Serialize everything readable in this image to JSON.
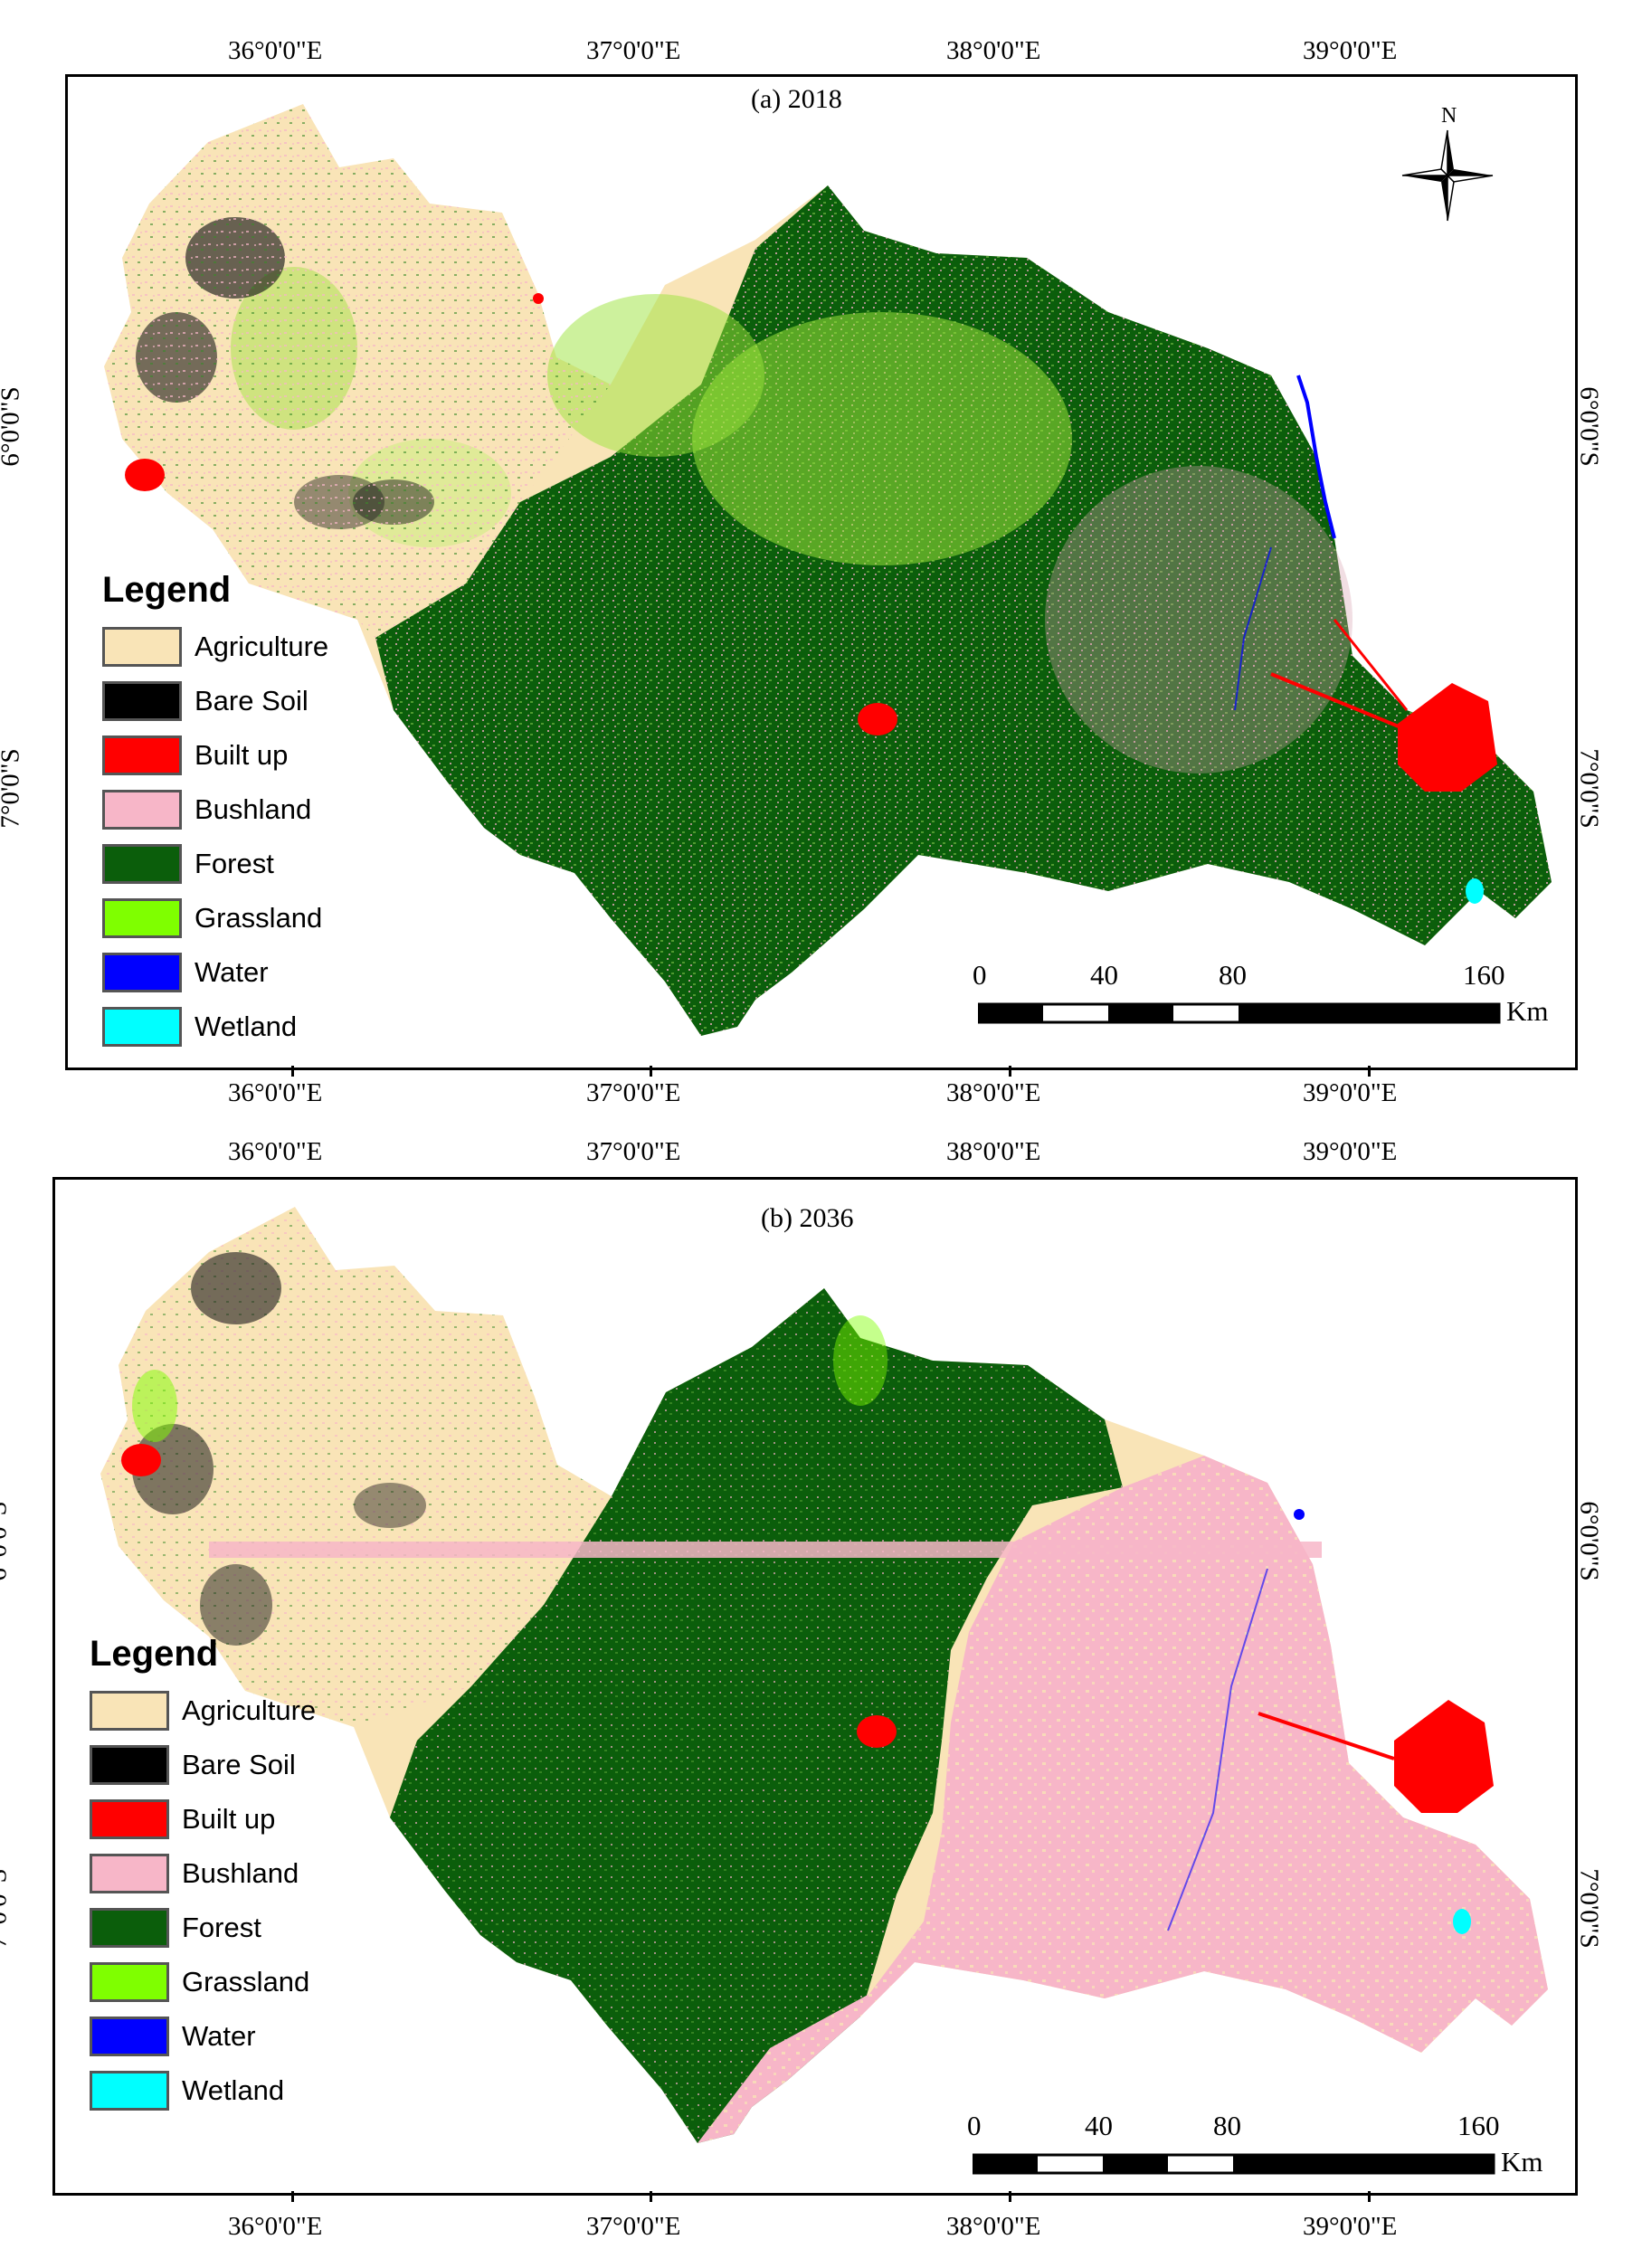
{
  "panels": [
    {
      "title": "(a) 2018",
      "lon_labels": [
        "36°0'0\"E",
        "37°0'0\"E",
        "38°0'0\"E",
        "39°0'0\"E"
      ],
      "lat_labels": [
        "6°0'0\"S",
        "7°0'0\"S"
      ],
      "legend": {
        "title": "Legend",
        "items": [
          {
            "label": "Agriculture",
            "color": "#F9E4B7"
          },
          {
            "label": "Bare Soil",
            "color": "#000000"
          },
          {
            "label": "Built up",
            "color": "#FF0000"
          },
          {
            "label": "Bushland",
            "color": "#F7B6C8"
          },
          {
            "label": "Forest",
            "color": "#0B5E0B"
          },
          {
            "label": "Grassland",
            "color": "#7FFF00"
          },
          {
            "label": "Water",
            "color": "#0000FF"
          },
          {
            "label": "Wetland",
            "color": "#00FFFF"
          }
        ]
      },
      "scale": {
        "ticks": [
          "0",
          "40",
          "80",
          "160"
        ],
        "unit": "Km"
      },
      "north": "N"
    },
    {
      "title": "(b) 2036",
      "lon_labels": [
        "36°0'0\"E",
        "37°0'0\"E",
        "38°0'0\"E",
        "39°0'0\"E"
      ],
      "lat_labels": [
        "6°0'0\"S",
        "7°0'0\"S"
      ],
      "legend": {
        "title": "Legend",
        "items": [
          {
            "label": "Agriculture",
            "color": "#F9E4B7"
          },
          {
            "label": "Bare Soil",
            "color": "#000000"
          },
          {
            "label": "Built up",
            "color": "#FF0000"
          },
          {
            "label": "Bushland",
            "color": "#F7B6C8"
          },
          {
            "label": "Forest",
            "color": "#0B5E0B"
          },
          {
            "label": "Grassland",
            "color": "#7FFF00"
          },
          {
            "label": "Water",
            "color": "#0000FF"
          },
          {
            "label": "Wetland",
            "color": "#00FFFF"
          }
        ]
      },
      "scale": {
        "ticks": [
          "0",
          "40",
          "80",
          "160"
        ],
        "unit": "Km"
      }
    }
  ]
}
